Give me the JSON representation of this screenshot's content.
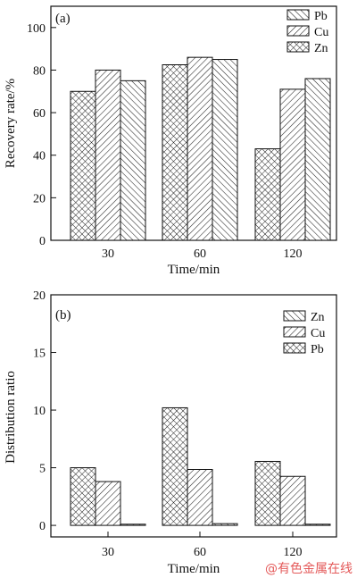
{
  "chart_data": [
    {
      "type": "bar",
      "panel_label": "(a)",
      "categories": [
        "30",
        "60",
        "120"
      ],
      "series": [
        {
          "name": "Pb",
          "pattern": "diag-back",
          "values": [
            75,
            85,
            76
          ]
        },
        {
          "name": "Cu",
          "pattern": "diag-fwd",
          "values": [
            80,
            86,
            71
          ]
        },
        {
          "name": "Zn",
          "pattern": "cross",
          "values": [
            70,
            82.5,
            43
          ]
        }
      ],
      "bar_order": [
        "Zn",
        "Cu",
        "Pb"
      ],
      "xlabel": "Time/min",
      "ylabel": "Recovery rate/%",
      "ylim": [
        0,
        110
      ],
      "yticks": [
        "0",
        "20",
        "40",
        "60",
        "80",
        "100"
      ],
      "legend_position": "top-right",
      "grid": false
    },
    {
      "type": "bar",
      "panel_label": "(b)",
      "categories": [
        "30",
        "60",
        "120"
      ],
      "series": [
        {
          "name": "Zn",
          "pattern": "diag-back",
          "values": [
            0.1,
            0.15,
            0.1
          ]
        },
        {
          "name": "Cu",
          "pattern": "diag-fwd",
          "values": [
            3.8,
            4.85,
            4.25
          ]
        },
        {
          "name": "Pb",
          "pattern": "cross",
          "values": [
            5.0,
            10.2,
            5.55
          ]
        }
      ],
      "bar_order": [
        "Pb",
        "Cu",
        "Zn"
      ],
      "xlabel": "Time/min",
      "ylabel": "Distribution ratio",
      "ylim": [
        -1,
        20
      ],
      "yticks": [
        "0",
        "5",
        "10",
        "15",
        "20"
      ],
      "legend_position": "top-right",
      "grid": false
    }
  ],
  "watermark": "@有色金属在线"
}
